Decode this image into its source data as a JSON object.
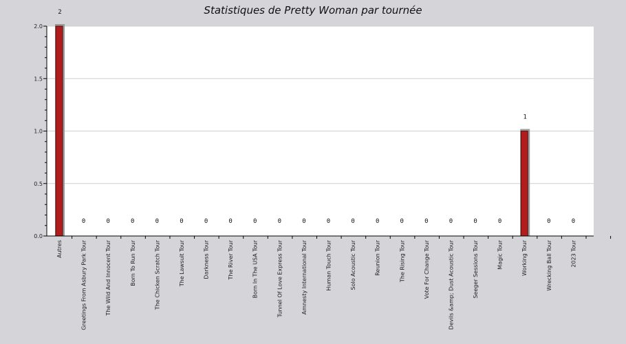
{
  "chart_data": {
    "type": "bar",
    "title": "Statistiques de Pretty Woman par tournée",
    "categories": [
      "Autres",
      "Greetings From Asbury Park Tour",
      "The Wild And Innocent Tour",
      "Born To Run Tour",
      "The Chicken Scratch Tour",
      "The Lawsuit Tour",
      "Darkness Tour",
      "The River Tour",
      "Born In The USA Tour",
      "Tunnel Of Love Express Tour",
      "Amnesty International Tour",
      "Human Touch Tour",
      "Solo Acoustic Tour",
      "Reunion Tour",
      "The Rising Tour",
      "Vote For Change Tour",
      "Devils &amp; Dust Acoustic Tour",
      "Seeger Sessions Tour",
      "Magic Tour",
      "Working Tour",
      "Wrecking Ball Tour",
      "2023 Tour"
    ],
    "values": [
      2,
      0,
      0,
      0,
      0,
      0,
      0,
      0,
      0,
      0,
      0,
      0,
      0,
      0,
      0,
      0,
      0,
      0,
      0,
      1,
      0,
      0
    ],
    "ylim": [
      0,
      2
    ],
    "yticks": [
      "0.0",
      "0.5",
      "1.0",
      "1.5",
      "2.0"
    ],
    "grid": true,
    "colors": {
      "bar": "#b11c1c",
      "bar_shadow": "#9a9a9a",
      "plot_bg": "#ffffff",
      "page_bg": "#d5d4d9",
      "grid": "#cfcfcf"
    }
  }
}
